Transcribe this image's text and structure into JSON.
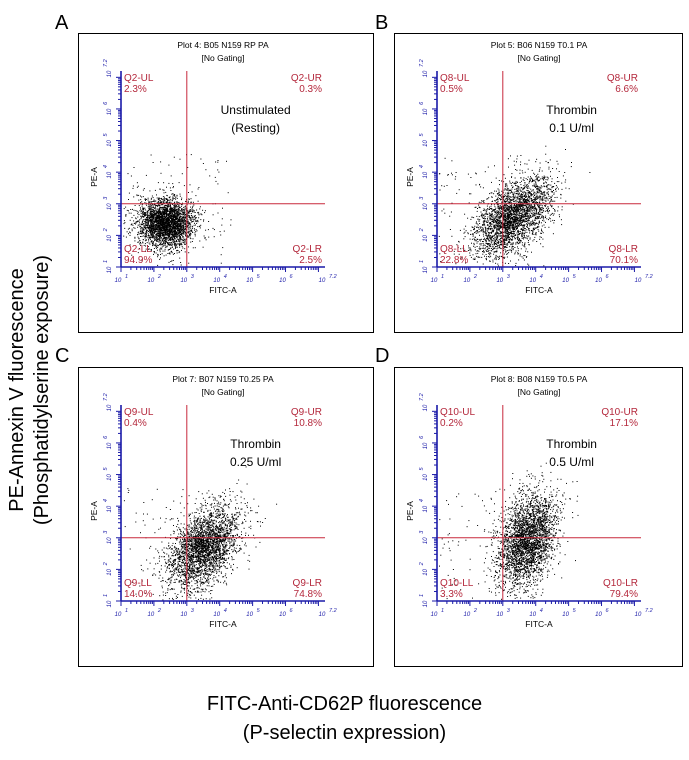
{
  "y_axis_title": {
    "line1": "PE-Annexin V fluorescence",
    "line2": "(Phosphatidylserine exposure)"
  },
  "x_axis_title": {
    "line1": "FITC-Anti-CD62P fluorescence",
    "line2": "(P-selectin expression)"
  },
  "colors": {
    "axis": "#1a1aa8",
    "gate": "#c8283c",
    "quadrant_text": "#b4283c",
    "dots": "#000000"
  },
  "tick_labels": [
    "10",
    "10",
    "10",
    "10",
    "10",
    "10",
    "10"
  ],
  "tick_exponents": [
    "1",
    "2",
    "3",
    "4",
    "5",
    "6",
    "7.2"
  ],
  "chart_data": [
    {
      "type": "scatter",
      "panel": "A",
      "title": "Plot 4: B05 N159 RP PA",
      "subtitle": "[No Gating]",
      "xlabel": "FITC-A",
      "ylabel": "PE-A",
      "xscale": "log",
      "yscale": "log",
      "xlim": [
        1,
        7.2
      ],
      "ylim": [
        1,
        7.2
      ],
      "gate": {
        "x": 3,
        "y": 3
      },
      "annotation": [
        "Unstimulated",
        "(Resting)"
      ],
      "quadrants": {
        "UL": {
          "label": "Q2-UL",
          "value": "2.3%"
        },
        "UR": {
          "label": "Q2-UR",
          "value": "0.3%"
        },
        "LL": {
          "label": "Q2-LL",
          "value": "94.9%"
        },
        "LR": {
          "label": "Q2-LR",
          "value": "2.5%"
        }
      },
      "cluster": {
        "cx": 2.35,
        "cy": 2.4,
        "sx": 0.42,
        "sy": 0.38,
        "n": 3200
      }
    },
    {
      "type": "scatter",
      "panel": "B",
      "title": "Plot 5: B06 N159 T0.1 PA",
      "subtitle": "[No Gating]",
      "xlabel": "FITC-A",
      "ylabel": "PE-A",
      "xscale": "log",
      "yscale": "log",
      "xlim": [
        1,
        7.2
      ],
      "ylim": [
        1,
        7.2
      ],
      "gate": {
        "x": 3,
        "y": 3
      },
      "annotation": [
        "Thrombin",
        "0.1 U/ml"
      ],
      "quadrants": {
        "UL": {
          "label": "Q8-UL",
          "value": "0.5%"
        },
        "UR": {
          "label": "Q8-UR",
          "value": "6.6%"
        },
        "LL": {
          "label": "Q8-LL",
          "value": "22.8%"
        },
        "LR": {
          "label": "Q8-LR",
          "value": "70.1%"
        }
      },
      "cluster": {
        "cx": 3.3,
        "cy": 2.6,
        "sx": 0.6,
        "sy": 0.55,
        "n": 3000
      }
    },
    {
      "type": "scatter",
      "panel": "C",
      "title": "Plot 7: B07 N159 T0.25 PA",
      "subtitle": "[No Gating]",
      "xlabel": "FITC-A",
      "ylabel": "PE-A",
      "xscale": "log",
      "yscale": "log",
      "xlim": [
        1,
        7.2
      ],
      "ylim": [
        1,
        7.2
      ],
      "gate": {
        "x": 3,
        "y": 3
      },
      "annotation": [
        "Thrombin",
        "0.25 U/ml"
      ],
      "quadrants": {
        "UL": {
          "label": "Q9-UL",
          "value": "0.4%"
        },
        "UR": {
          "label": "Q9-UR",
          "value": "10.8%"
        },
        "LL": {
          "label": "Q9-LL",
          "value": "14.0%"
        },
        "LR": {
          "label": "Q9-LR",
          "value": "74.8%"
        }
      },
      "cluster": {
        "cx": 3.5,
        "cy": 2.7,
        "sx": 0.55,
        "sy": 0.6,
        "n": 3000
      }
    },
    {
      "type": "scatter",
      "panel": "D",
      "title": "Plot 8: B08 N159 T0.5 PA",
      "subtitle": "[No Gating]",
      "xlabel": "FITC-A",
      "ylabel": "PE-A",
      "xscale": "log",
      "yscale": "log",
      "xlim": [
        1,
        7.2
      ],
      "ylim": [
        1,
        7.2
      ],
      "gate": {
        "x": 3,
        "y": 3
      },
      "annotation": [
        "Thrombin",
        "0.5 U/ml"
      ],
      "quadrants": {
        "UL": {
          "label": "Q10-UL",
          "value": "0.2%"
        },
        "UR": {
          "label": "Q10-UR",
          "value": "17.1%"
        },
        "LL": {
          "label": "Q10-LL",
          "value": "3.3%"
        },
        "LR": {
          "label": "Q10-LR",
          "value": "79.4%"
        }
      },
      "cluster": {
        "cx": 3.75,
        "cy": 2.95,
        "sx": 0.45,
        "sy": 0.7,
        "n": 3000
      }
    }
  ]
}
